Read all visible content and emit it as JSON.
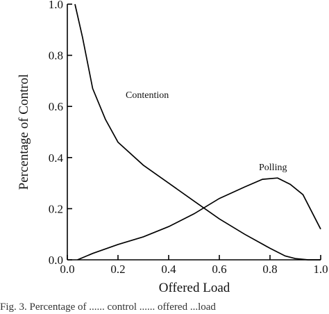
{
  "chart_data": {
    "type": "line",
    "xlabel": "Offered Load",
    "ylabel": "Percentage of Control",
    "xlim": [
      0.0,
      1.0
    ],
    "ylim": [
      0.0,
      1.0
    ],
    "x_ticks": [
      "0.0",
      "0.2",
      "0.4",
      "0.6",
      "0.8",
      "1.0"
    ],
    "y_ticks": [
      "0.0",
      "0.2",
      "0.4",
      "0.6",
      "0.8",
      "1.0"
    ],
    "grid": false,
    "series": [
      {
        "name": "Contention",
        "x": [
          0.03,
          0.06,
          0.1,
          0.15,
          0.2,
          0.3,
          0.4,
          0.5,
          0.6,
          0.7,
          0.8,
          0.86,
          0.9,
          0.95,
          1.0
        ],
        "y": [
          1.0,
          0.87,
          0.67,
          0.55,
          0.46,
          0.37,
          0.3,
          0.23,
          0.16,
          0.1,
          0.045,
          0.015,
          0.005,
          0.0,
          0.0
        ]
      },
      {
        "name": "Polling",
        "x": [
          0.04,
          0.1,
          0.2,
          0.3,
          0.4,
          0.5,
          0.6,
          0.7,
          0.77,
          0.83,
          0.88,
          0.93,
          1.0
        ],
        "y": [
          0.0,
          0.025,
          0.06,
          0.09,
          0.13,
          0.18,
          0.24,
          0.285,
          0.315,
          0.32,
          0.295,
          0.255,
          0.12
        ]
      }
    ]
  },
  "caption": "Fig. 3. Percentage of ...... control ...... offered ...load"
}
